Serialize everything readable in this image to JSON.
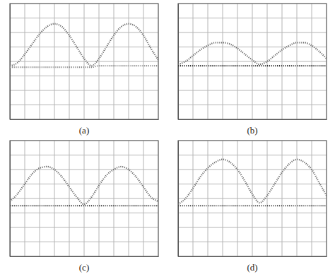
{
  "chart_data": [
    {
      "type": "line",
      "title": "(a)",
      "grid": true,
      "tick_labels": false,
      "xlim": [
        0,
        10
      ],
      "ylim": [
        0,
        8
      ],
      "xticks": [
        0,
        1,
        2,
        3,
        4,
        5,
        6,
        7,
        8,
        9,
        10
      ],
      "yticks": [
        0,
        1,
        2,
        3,
        4,
        5,
        6,
        7,
        8
      ],
      "x": [
        0,
        0.5,
        1,
        1.5,
        2,
        2.5,
        3,
        3.5,
        4,
        4.5,
        5,
        5.5,
        6,
        6.5,
        7,
        7.5,
        8,
        8.5,
        9,
        9.5,
        10
      ],
      "series": [
        {
          "color": "#6a6a6a",
          "line_style": "dotted",
          "values": [
            3.7,
            3.9,
            4.5,
            5.2,
            5.9,
            6.4,
            6.6,
            6.4,
            5.8,
            5.0,
            4.2,
            3.7,
            4.2,
            5.0,
            5.8,
            6.4,
            6.6,
            6.4,
            5.8,
            4.9,
            4.1
          ]
        },
        {
          "color": "#8a8a8a",
          "line_style": "dotted",
          "values": [
            3.6,
            3.6,
            3.6,
            3.6,
            3.6,
            3.6,
            3.6,
            3.6,
            3.6,
            3.6,
            3.6,
            3.6,
            3.7,
            3.7,
            3.7,
            3.7,
            3.7,
            3.7,
            3.7,
            3.7,
            3.7
          ]
        }
      ]
    },
    {
      "type": "line",
      "title": "(b)",
      "grid": true,
      "tick_labels": false,
      "xlim": [
        0,
        10
      ],
      "ylim": [
        0,
        8
      ],
      "xticks": [
        0,
        1,
        2,
        3,
        4,
        5,
        6,
        7,
        8,
        9,
        10
      ],
      "yticks": [
        0,
        1,
        2,
        3,
        4,
        5,
        6,
        7,
        8
      ],
      "x": [
        0,
        0.5,
        1,
        1.5,
        2,
        2.5,
        3,
        3.5,
        4,
        4.5,
        5,
        5.5,
        6,
        6.5,
        7,
        7.5,
        8,
        8.5,
        9,
        9.5,
        10
      ],
      "series": [
        {
          "color": "#6a6a6a",
          "line_style": "dotted",
          "values": [
            3.8,
            4.0,
            4.4,
            4.8,
            5.1,
            5.3,
            5.3,
            5.2,
            4.9,
            4.5,
            4.1,
            3.8,
            4.0,
            4.4,
            4.8,
            5.1,
            5.3,
            5.3,
            5.1,
            4.7,
            4.2
          ]
        },
        {
          "color": "#333333",
          "line_style": "dotted",
          "values": [
            3.7,
            3.7,
            3.7,
            3.7,
            3.7,
            3.7,
            3.7,
            3.7,
            3.7,
            3.7,
            3.7,
            3.7,
            3.7,
            3.7,
            3.7,
            3.7,
            3.7,
            3.7,
            3.7,
            3.7,
            3.7
          ]
        }
      ]
    },
    {
      "type": "line",
      "title": "(c)",
      "grid": true,
      "tick_labels": false,
      "xlim": [
        0,
        10
      ],
      "ylim": [
        0,
        8
      ],
      "xticks": [
        0,
        1,
        2,
        3,
        4,
        5,
        6,
        7,
        8,
        9,
        10
      ],
      "yticks": [
        0,
        1,
        2,
        3,
        4,
        5,
        6,
        7,
        8
      ],
      "x": [
        0,
        0.5,
        1,
        1.5,
        2,
        2.5,
        3,
        3.5,
        4,
        4.5,
        5,
        5.5,
        6,
        6.5,
        7,
        7.5,
        8,
        8.5,
        9,
        9.5,
        10
      ],
      "series": [
        {
          "color": "#6a6a6a",
          "line_style": "dotted",
          "values": [
            3.8,
            4.3,
            5.0,
            5.7,
            6.1,
            6.2,
            6.0,
            5.5,
            4.8,
            4.1,
            3.6,
            4.1,
            4.9,
            5.6,
            6.0,
            6.2,
            6.0,
            5.5,
            4.8,
            4.1,
            3.8
          ]
        },
        {
          "color": "#333333",
          "line_style": "dotted",
          "values": [
            3.5,
            3.5,
            3.5,
            3.5,
            3.5,
            3.5,
            3.5,
            3.5,
            3.5,
            3.5,
            3.5,
            3.5,
            3.5,
            3.5,
            3.5,
            3.5,
            3.5,
            3.5,
            3.5,
            3.5,
            3.5
          ]
        }
      ]
    },
    {
      "type": "line",
      "title": "(d)",
      "grid": true,
      "tick_labels": false,
      "xlim": [
        0,
        10
      ],
      "ylim": [
        0,
        8
      ],
      "xticks": [
        0,
        1,
        2,
        3,
        4,
        5,
        6,
        7,
        8,
        9,
        10
      ],
      "yticks": [
        0,
        1,
        2,
        3,
        4,
        5,
        6,
        7,
        8
      ],
      "x": [
        0,
        0.5,
        1,
        1.5,
        2,
        2.5,
        3,
        3.5,
        4,
        4.5,
        5,
        5.5,
        6,
        6.5,
        7,
        7.5,
        8,
        8.5,
        9,
        9.5,
        10
      ],
      "series": [
        {
          "color": "#6a6a6a",
          "line_style": "dotted",
          "values": [
            3.6,
            4.0,
            4.7,
            5.5,
            6.1,
            6.5,
            6.7,
            6.5,
            6.0,
            5.2,
            4.3,
            3.7,
            4.2,
            5.0,
            5.8,
            6.4,
            6.7,
            6.5,
            6.0,
            5.1,
            4.2
          ]
        },
        {
          "color": "#444444",
          "line_style": "dotted",
          "values": [
            3.5,
            3.5,
            3.5,
            3.5,
            3.5,
            3.5,
            3.5,
            3.5,
            3.5,
            3.5,
            3.5,
            3.5,
            3.5,
            3.5,
            3.5,
            3.5,
            3.5,
            3.5,
            3.5,
            3.5,
            3.5
          ]
        }
      ]
    }
  ]
}
